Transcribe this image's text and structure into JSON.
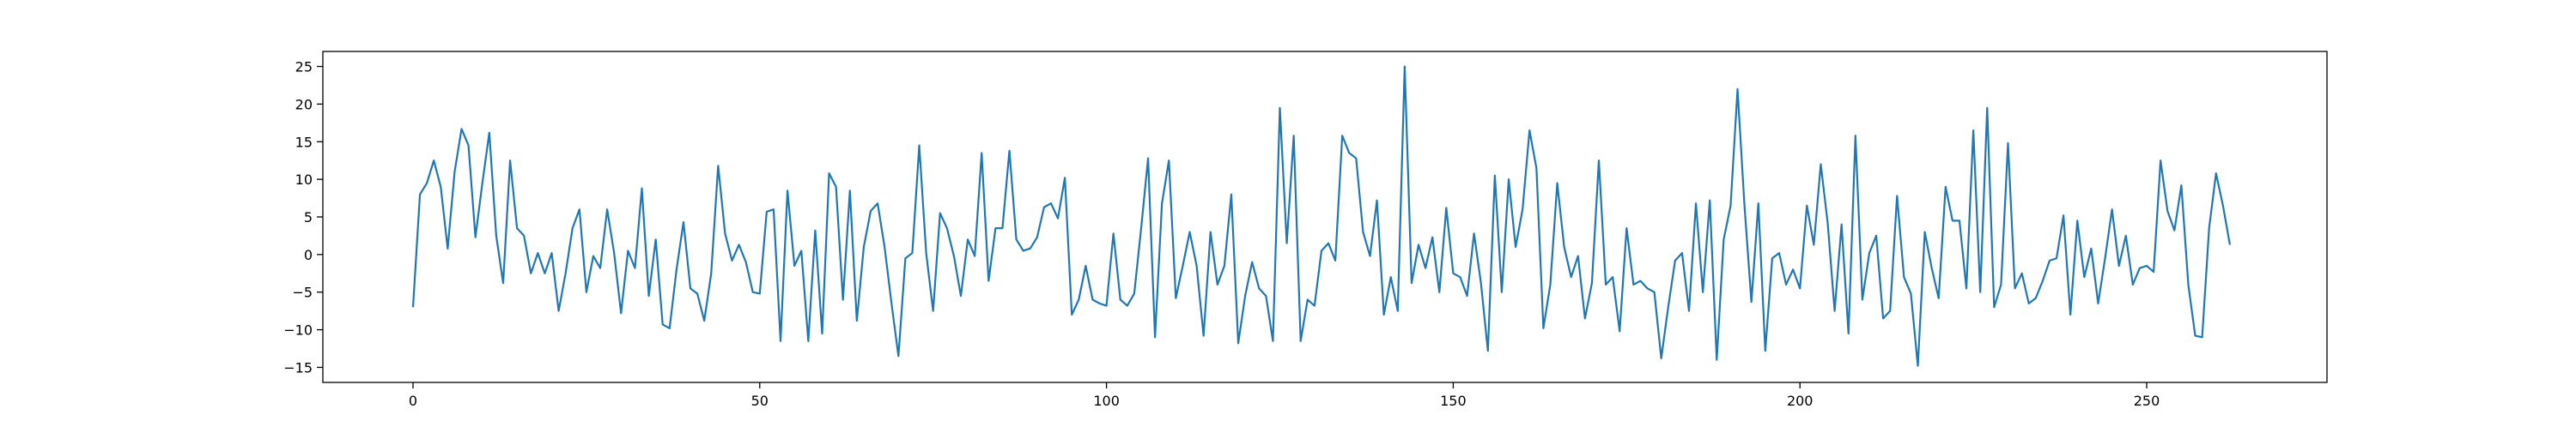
{
  "chart_data": {
    "type": "line",
    "title": "",
    "xlabel": "",
    "ylabel": "",
    "xlim": [
      -13,
      276
    ],
    "ylim": [
      -17,
      27
    ],
    "grid": false,
    "x_ticks": [
      0,
      50,
      100,
      150,
      200,
      250
    ],
    "y_ticks": [
      -15,
      -10,
      -5,
      0,
      5,
      10,
      15,
      20,
      25
    ],
    "series": [
      {
        "color": "#1f77b4",
        "x_start": 0,
        "x_step": 1,
        "values": [
          -7.0,
          8.0,
          9.5,
          12.5,
          9.0,
          0.8,
          11.0,
          16.7,
          14.5,
          2.3,
          9.5,
          16.2,
          2.5,
          -3.8,
          12.5,
          3.5,
          2.5,
          -2.5,
          0.2,
          -2.5,
          0.2,
          -7.5,
          -2.5,
          3.5,
          6.0,
          -5.0,
          -0.2,
          -1.8,
          6.0,
          0.2,
          -7.8,
          0.5,
          -1.8,
          8.8,
          -5.5,
          2.0,
          -9.3,
          -9.8,
          -2.0,
          4.3,
          -4.5,
          -5.2,
          -8.8,
          -2.5,
          11.8,
          2.8,
          -0.8,
          1.3,
          -1.0,
          -5.0,
          -5.2,
          5.7,
          6.0,
          -11.5,
          8.5,
          -1.5,
          0.5,
          -11.5,
          3.2,
          -10.5,
          10.8,
          9.0,
          -6.0,
          8.5,
          -8.8,
          1.0,
          5.8,
          6.8,
          1.0,
          -6.5,
          -13.5,
          -0.5,
          0.2,
          14.5,
          0.2,
          -7.5,
          5.5,
          3.5,
          -0.2,
          -5.5,
          2.0,
          -0.2,
          13.5,
          -3.5,
          3.5,
          3.5,
          13.8,
          2.0,
          0.5,
          0.8,
          2.3,
          6.3,
          6.8,
          4.8,
          10.2,
          -8.0,
          -6.0,
          -1.5,
          -6.0,
          -6.5,
          -6.8,
          2.8,
          -6.0,
          -6.8,
          -5.2,
          3.5,
          12.8,
          -11.0,
          6.8,
          12.5,
          -5.8,
          -1.5,
          3.0,
          -1.5,
          -10.8,
          3.0,
          -4.0,
          -1.5,
          8.0,
          -11.8,
          -5.5,
          -1.0,
          -4.5,
          -5.5,
          -11.5,
          19.5,
          1.5,
          15.8,
          -11.5,
          -6.0,
          -6.8,
          0.5,
          1.5,
          -0.8,
          15.8,
          13.5,
          12.8,
          3.0,
          -0.2,
          7.2,
          -8.0,
          -3.0,
          -7.5,
          25.0,
          -3.8,
          1.3,
          -1.8,
          2.3,
          -5.0,
          6.2,
          -2.5,
          -3.0,
          -5.5,
          2.8,
          -3.8,
          -12.8,
          10.5,
          -5.0,
          10.0,
          1.0,
          6.0,
          16.5,
          11.5,
          -9.8,
          -4.0,
          9.5,
          1.0,
          -3.0,
          -0.2,
          -8.5,
          -3.8,
          12.5,
          -4.0,
          -3.0,
          -10.2,
          3.5,
          -4.0,
          -3.5,
          -4.5,
          -5.0,
          -13.8,
          -7.0,
          -0.8,
          0.2,
          -7.5,
          6.8,
          -5.0,
          7.2,
          -14.0,
          2.0,
          6.5,
          22.0,
          6.5,
          -6.3,
          6.8,
          -12.8,
          -0.5,
          0.2,
          -4.0,
          -2.0,
          -4.5,
          6.5,
          1.3,
          12.0,
          4.2,
          -7.5,
          4.0,
          -10.5,
          15.8,
          -6.0,
          0.2,
          2.5,
          -8.5,
          -7.5,
          7.8,
          -3.0,
          -5.2,
          -14.8,
          3.0,
          -1.8,
          -5.8,
          9.0,
          4.5,
          4.5,
          -4.5,
          16.5,
          -5.0,
          19.5,
          -7.0,
          -4.0,
          14.8,
          -4.5,
          -2.5,
          -6.5,
          -5.8,
          -3.5,
          -0.8,
          -0.5,
          5.2,
          -8.0,
          4.5,
          -3.0,
          0.8,
          -6.5,
          -0.5,
          6.0,
          -1.5,
          2.5,
          -4.0,
          -1.8,
          -1.5,
          -2.3,
          12.5,
          5.8,
          3.2,
          9.2,
          -4.0,
          -10.8,
          -11.0,
          3.5,
          10.8,
          6.5,
          1.3
        ]
      }
    ]
  }
}
